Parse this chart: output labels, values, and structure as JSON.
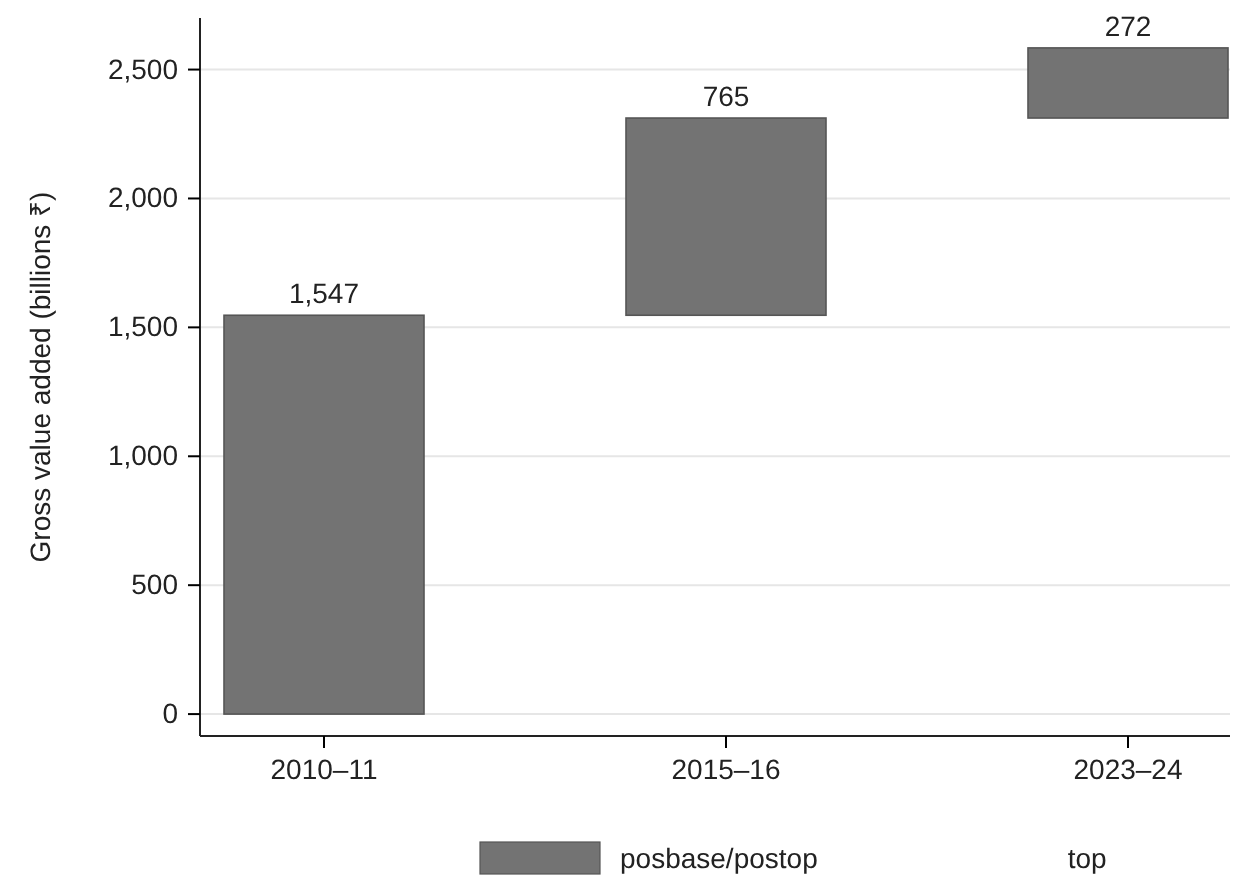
{
  "chart_data": {
    "type": "bar",
    "ylabel": "Gross value added (billions ₹)",
    "categories": [
      "2010–11",
      "2015–16",
      "2023–24"
    ],
    "series": [
      {
        "name": "posbase/postop",
        "color": "#737373",
        "values": [
          1547,
          765,
          272
        ],
        "base": [
          0,
          1547,
          2312
        ],
        "value_labels": [
          "1,547",
          "765",
          "272"
        ]
      },
      {
        "name": "top",
        "values": [
          null,
          null,
          null
        ]
      }
    ],
    "ylim": [
      -85,
      2700
    ],
    "yticks": [
      0,
      {
        "value": 500,
        "label": "500"
      },
      {
        "value": 1000,
        "label": "1,000"
      },
      {
        "value": 1500,
        "label": "1,500"
      },
      {
        "value": 2000,
        "label": "2,000"
      },
      {
        "value": 2500,
        "label": "2,500"
      }
    ],
    "grid": "y",
    "legend": "bottom"
  }
}
